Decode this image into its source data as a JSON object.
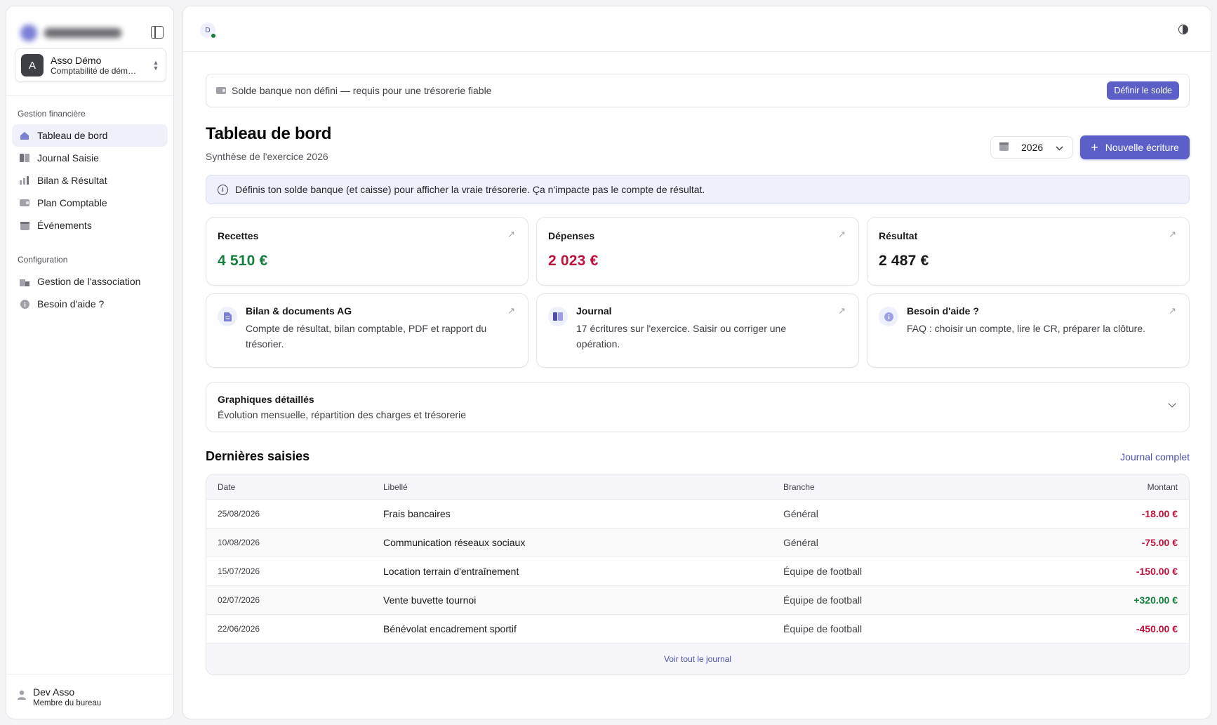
{
  "colors": {
    "accent": "#5b5fc7",
    "positive": "#15803d",
    "negative": "#be123c"
  },
  "sidebar": {
    "org": {
      "initial": "A",
      "name": "Asso Démo",
      "subtitle": "Comptabilité de démonstration"
    },
    "sections": [
      {
        "title": "Gestion financière",
        "items": [
          {
            "label": "Tableau de bord",
            "icon": "dashboard-icon",
            "active": true
          },
          {
            "label": "Journal Saisie",
            "icon": "book-icon"
          },
          {
            "label": "Bilan & Résultat",
            "icon": "chart-bars-icon"
          },
          {
            "label": "Plan Comptable",
            "icon": "wallet-icon"
          },
          {
            "label": "Événements",
            "icon": "calendar-icon"
          }
        ]
      },
      {
        "title": "Configuration",
        "items": [
          {
            "label": "Gestion de l'association",
            "icon": "building-icon"
          },
          {
            "label": "Besoin d'aide ?",
            "icon": "info-icon"
          }
        ]
      }
    ],
    "user": {
      "name": "Dev Asso",
      "role": "Membre du bureau"
    }
  },
  "topbar": {
    "avatar_initial": "D"
  },
  "bank_alert": {
    "text": "Solde banque non défini — requis pour une trésorerie fiable",
    "button": "Définir le solde"
  },
  "header": {
    "title": "Tableau de bord",
    "subtitle": "Synthèse de l'exercice 2026",
    "year": "2026",
    "new_entry": "Nouvelle écriture"
  },
  "info_banner": "Définis ton solde banque (et caisse) pour afficher la vraie trésorerie. Ça n'impacte pas le compte de résultat.",
  "kpis": [
    {
      "label": "Recettes",
      "value": "4 510 €",
      "tone": "positive"
    },
    {
      "label": "Dépenses",
      "value": "2 023 €",
      "tone": "negative"
    },
    {
      "label": "Résultat",
      "value": "2 487 €",
      "tone": "neutral"
    }
  ],
  "links": [
    {
      "title": "Bilan & documents AG",
      "desc": "Compte de résultat, bilan comptable, PDF et rapport du trésorier.",
      "icon": "document-icon"
    },
    {
      "title": "Journal",
      "desc": "17 écritures sur l'exercice. Saisir ou corriger une opération.",
      "icon": "book-icon"
    },
    {
      "title": "Besoin d'aide ?",
      "desc": "FAQ : choisir un compte, lire le CR, préparer la clôture.",
      "icon": "info-icon"
    }
  ],
  "charts_panel": {
    "title": "Graphiques détaillés",
    "desc": "Évolution mensuelle, répartition des charges et trésorerie"
  },
  "recent": {
    "title": "Dernières saisies",
    "link": "Journal complet",
    "columns": {
      "date": "Date",
      "label": "Libellé",
      "branch": "Branche",
      "amount": "Montant"
    },
    "rows": [
      {
        "date": "25/08/2026",
        "label": "Frais bancaires",
        "branch": "Général",
        "amount": "-18.00 €",
        "tone": "negative"
      },
      {
        "date": "10/08/2026",
        "label": "Communication réseaux sociaux",
        "branch": "Général",
        "amount": "-75.00 €",
        "tone": "negative"
      },
      {
        "date": "15/07/2026",
        "label": "Location terrain d'entraînement",
        "branch": "Équipe de football",
        "amount": "-150.00 €",
        "tone": "negative"
      },
      {
        "date": "02/07/2026",
        "label": "Vente buvette tournoi",
        "branch": "Équipe de football",
        "amount": "+320.00 €",
        "tone": "positive"
      },
      {
        "date": "22/06/2026",
        "label": "Bénévolat encadrement sportif",
        "branch": "Équipe de football",
        "amount": "-450.00 €",
        "tone": "negative"
      }
    ],
    "footer": "Voir tout le journal"
  }
}
